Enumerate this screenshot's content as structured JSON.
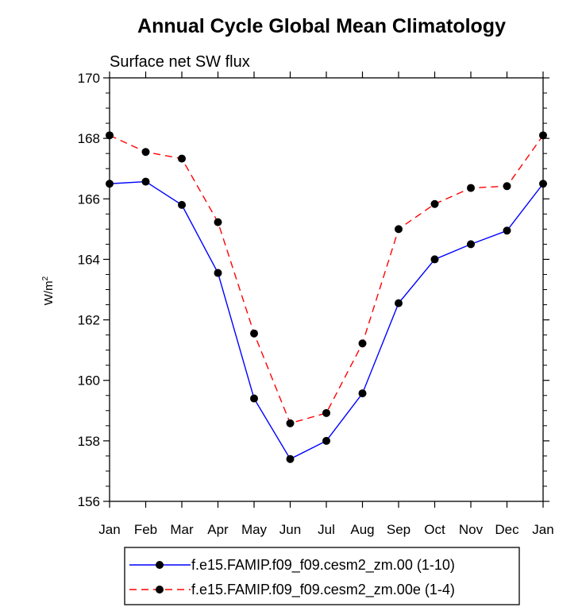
{
  "chart_data": {
    "type": "line",
    "title": "Annual Cycle Global Mean Climatology",
    "subtitle": "Surface net SW flux",
    "ylabel": "W/m",
    "ylabel_superscript": "2",
    "xlabel": "",
    "categories": [
      "Jan",
      "Feb",
      "Mar",
      "Apr",
      "May",
      "Jun",
      "Jul",
      "Aug",
      "Sep",
      "Oct",
      "Nov",
      "Dec",
      "Jan"
    ],
    "ylim": [
      156,
      170
    ],
    "yticks": [
      156,
      158,
      160,
      162,
      164,
      166,
      168,
      170
    ],
    "grid": false,
    "legend_position": "bottom",
    "series": [
      {
        "name": "f.e15.FAMIP.f09_f09.cesm2_zm.00 (1-10)",
        "color": "#0000ff",
        "dash": "solid",
        "values": [
          166.5,
          166.57,
          165.8,
          163.55,
          159.4,
          157.4,
          158.0,
          159.57,
          162.55,
          164.0,
          164.5,
          164.95,
          166.5
        ]
      },
      {
        "name": "f.e15.FAMIP.f09_f09.cesm2_zm.00e (1-4)",
        "color": "#ff0000",
        "dash": "dashed",
        "values": [
          168.1,
          167.55,
          167.33,
          165.23,
          161.55,
          158.58,
          158.92,
          161.22,
          165.0,
          165.83,
          166.36,
          166.42,
          168.1
        ]
      }
    ]
  }
}
